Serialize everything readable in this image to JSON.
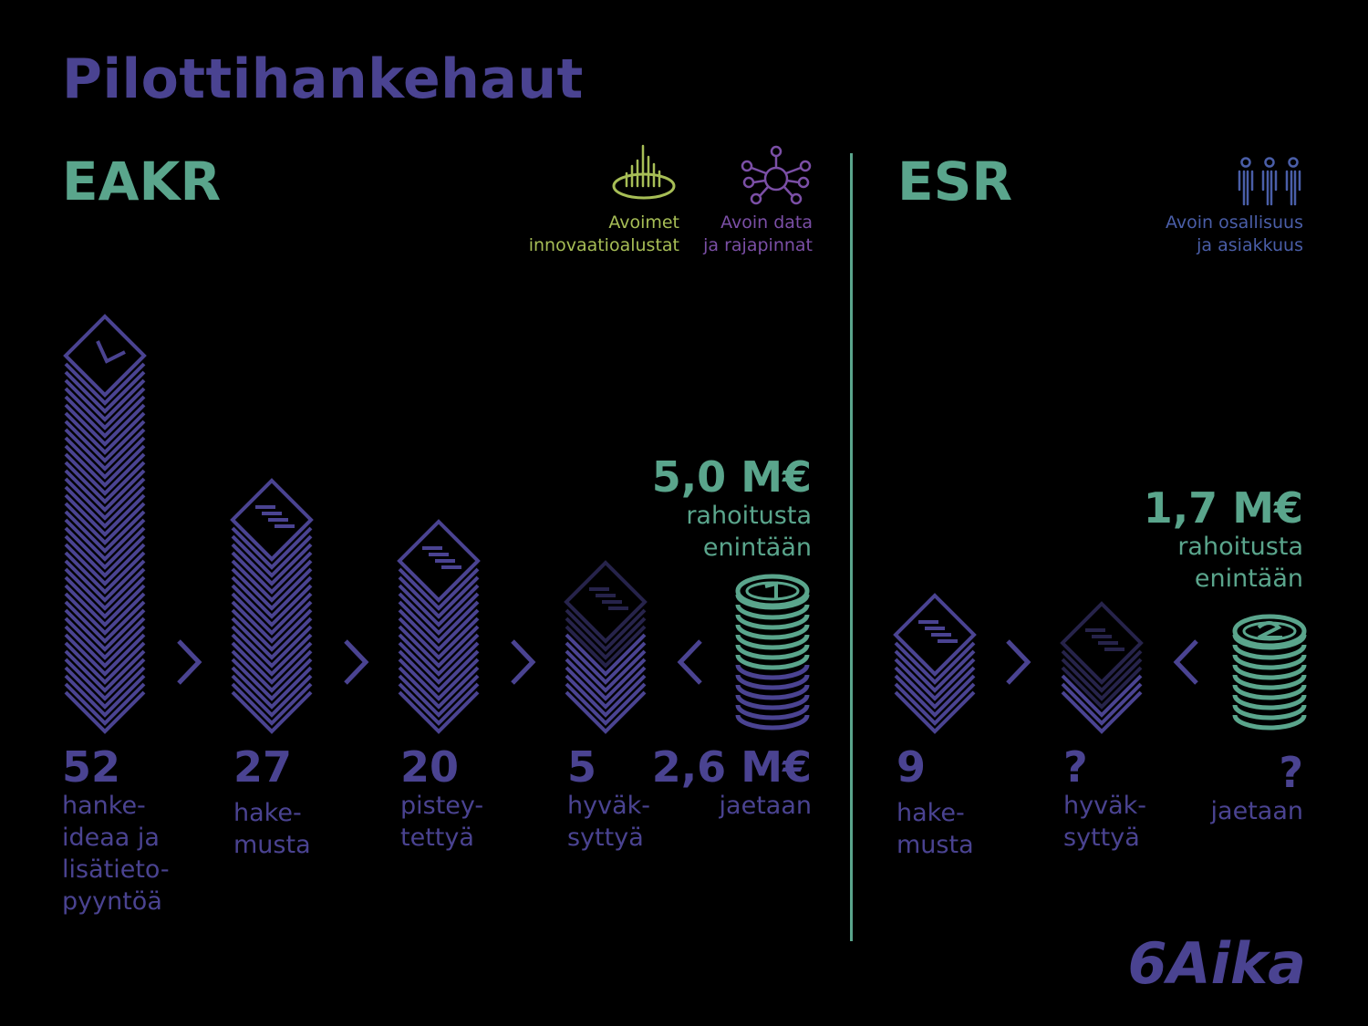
{
  "title": "Pilottihankehaut",
  "colors": {
    "purple": "#4a4391",
    "green": "#5aa58c",
    "lime": "#a7be56",
    "violet": "#7b4fa6",
    "blue": "#4a5ea8",
    "background": "#000000"
  },
  "eakr": {
    "heading": "EAKR",
    "themes": [
      {
        "icon": "innovation-platform-icon",
        "line1": "Avoimet",
        "line2": "innovaatioalustat"
      },
      {
        "icon": "network-hub-icon",
        "line1": "Avoin data",
        "line2": "ja rajapinnat"
      }
    ],
    "funding": {
      "amount": "5,0 M€",
      "line1": "rahoitusta",
      "line2": "enintään"
    },
    "stages": [
      {
        "icon": "envelope-stack-icon",
        "number": "52",
        "label": [
          "hanke-",
          "ideaa ja",
          "lisätieto-",
          "pyyntöä"
        ]
      },
      {
        "icon": "document-stack-icon",
        "number": "27",
        "label": [
          "hake-",
          "musta"
        ]
      },
      {
        "icon": "document-stack-icon",
        "number": "20",
        "label": [
          "pistey-",
          "tettyä"
        ]
      },
      {
        "icon": "document-stack-icon",
        "number": "5",
        "label": [
          "hyväk-",
          "syttyä"
        ]
      }
    ],
    "distributed": {
      "icon": "coin-stack-1-icon",
      "amount": "2,6 M€",
      "label": "jaetaan"
    }
  },
  "esr": {
    "heading": "ESR",
    "themes": [
      {
        "icon": "people-icon",
        "line1": "Avoin osallisuus",
        "line2": "ja asiakkuus"
      }
    ],
    "funding": {
      "amount": "1,7 M€",
      "line1": "rahoitusta",
      "line2": "enintään"
    },
    "stages": [
      {
        "icon": "document-stack-icon",
        "number": "9",
        "label": [
          "hake-",
          "musta"
        ]
      },
      {
        "icon": "document-stack-icon",
        "number": "?",
        "label": [
          "hyväk-",
          "syttyä"
        ]
      }
    ],
    "distributed": {
      "icon": "coin-stack-2-icon",
      "amount": "?",
      "label": "jaetaan"
    }
  },
  "logo": "6Aika"
}
